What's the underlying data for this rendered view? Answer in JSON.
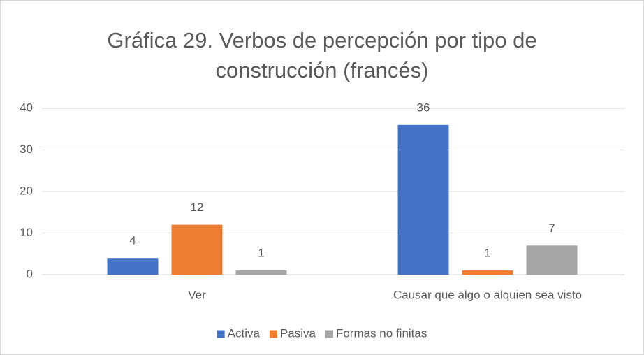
{
  "chart_data": {
    "type": "bar",
    "title": [
      "Gráfica 29. Verbos de percepción por tipo de",
      "construcción (francés)"
    ],
    "categories": [
      "Ver",
      "Causar que algo o alquien sea visto"
    ],
    "series": [
      {
        "name": "Activa",
        "color": "#4472c4",
        "values": [
          4,
          36
        ]
      },
      {
        "name": "Pasiva",
        "color": "#ed7d31",
        "values": [
          12,
          1
        ]
      },
      {
        "name": "Formas no finitas",
        "color": "#a5a5a5",
        "values": [
          1,
          7
        ]
      }
    ],
    "ylim": [
      0,
      40
    ],
    "yticks": [
      0,
      10,
      20,
      30,
      40
    ],
    "grid": true,
    "legend": "bottom"
  }
}
